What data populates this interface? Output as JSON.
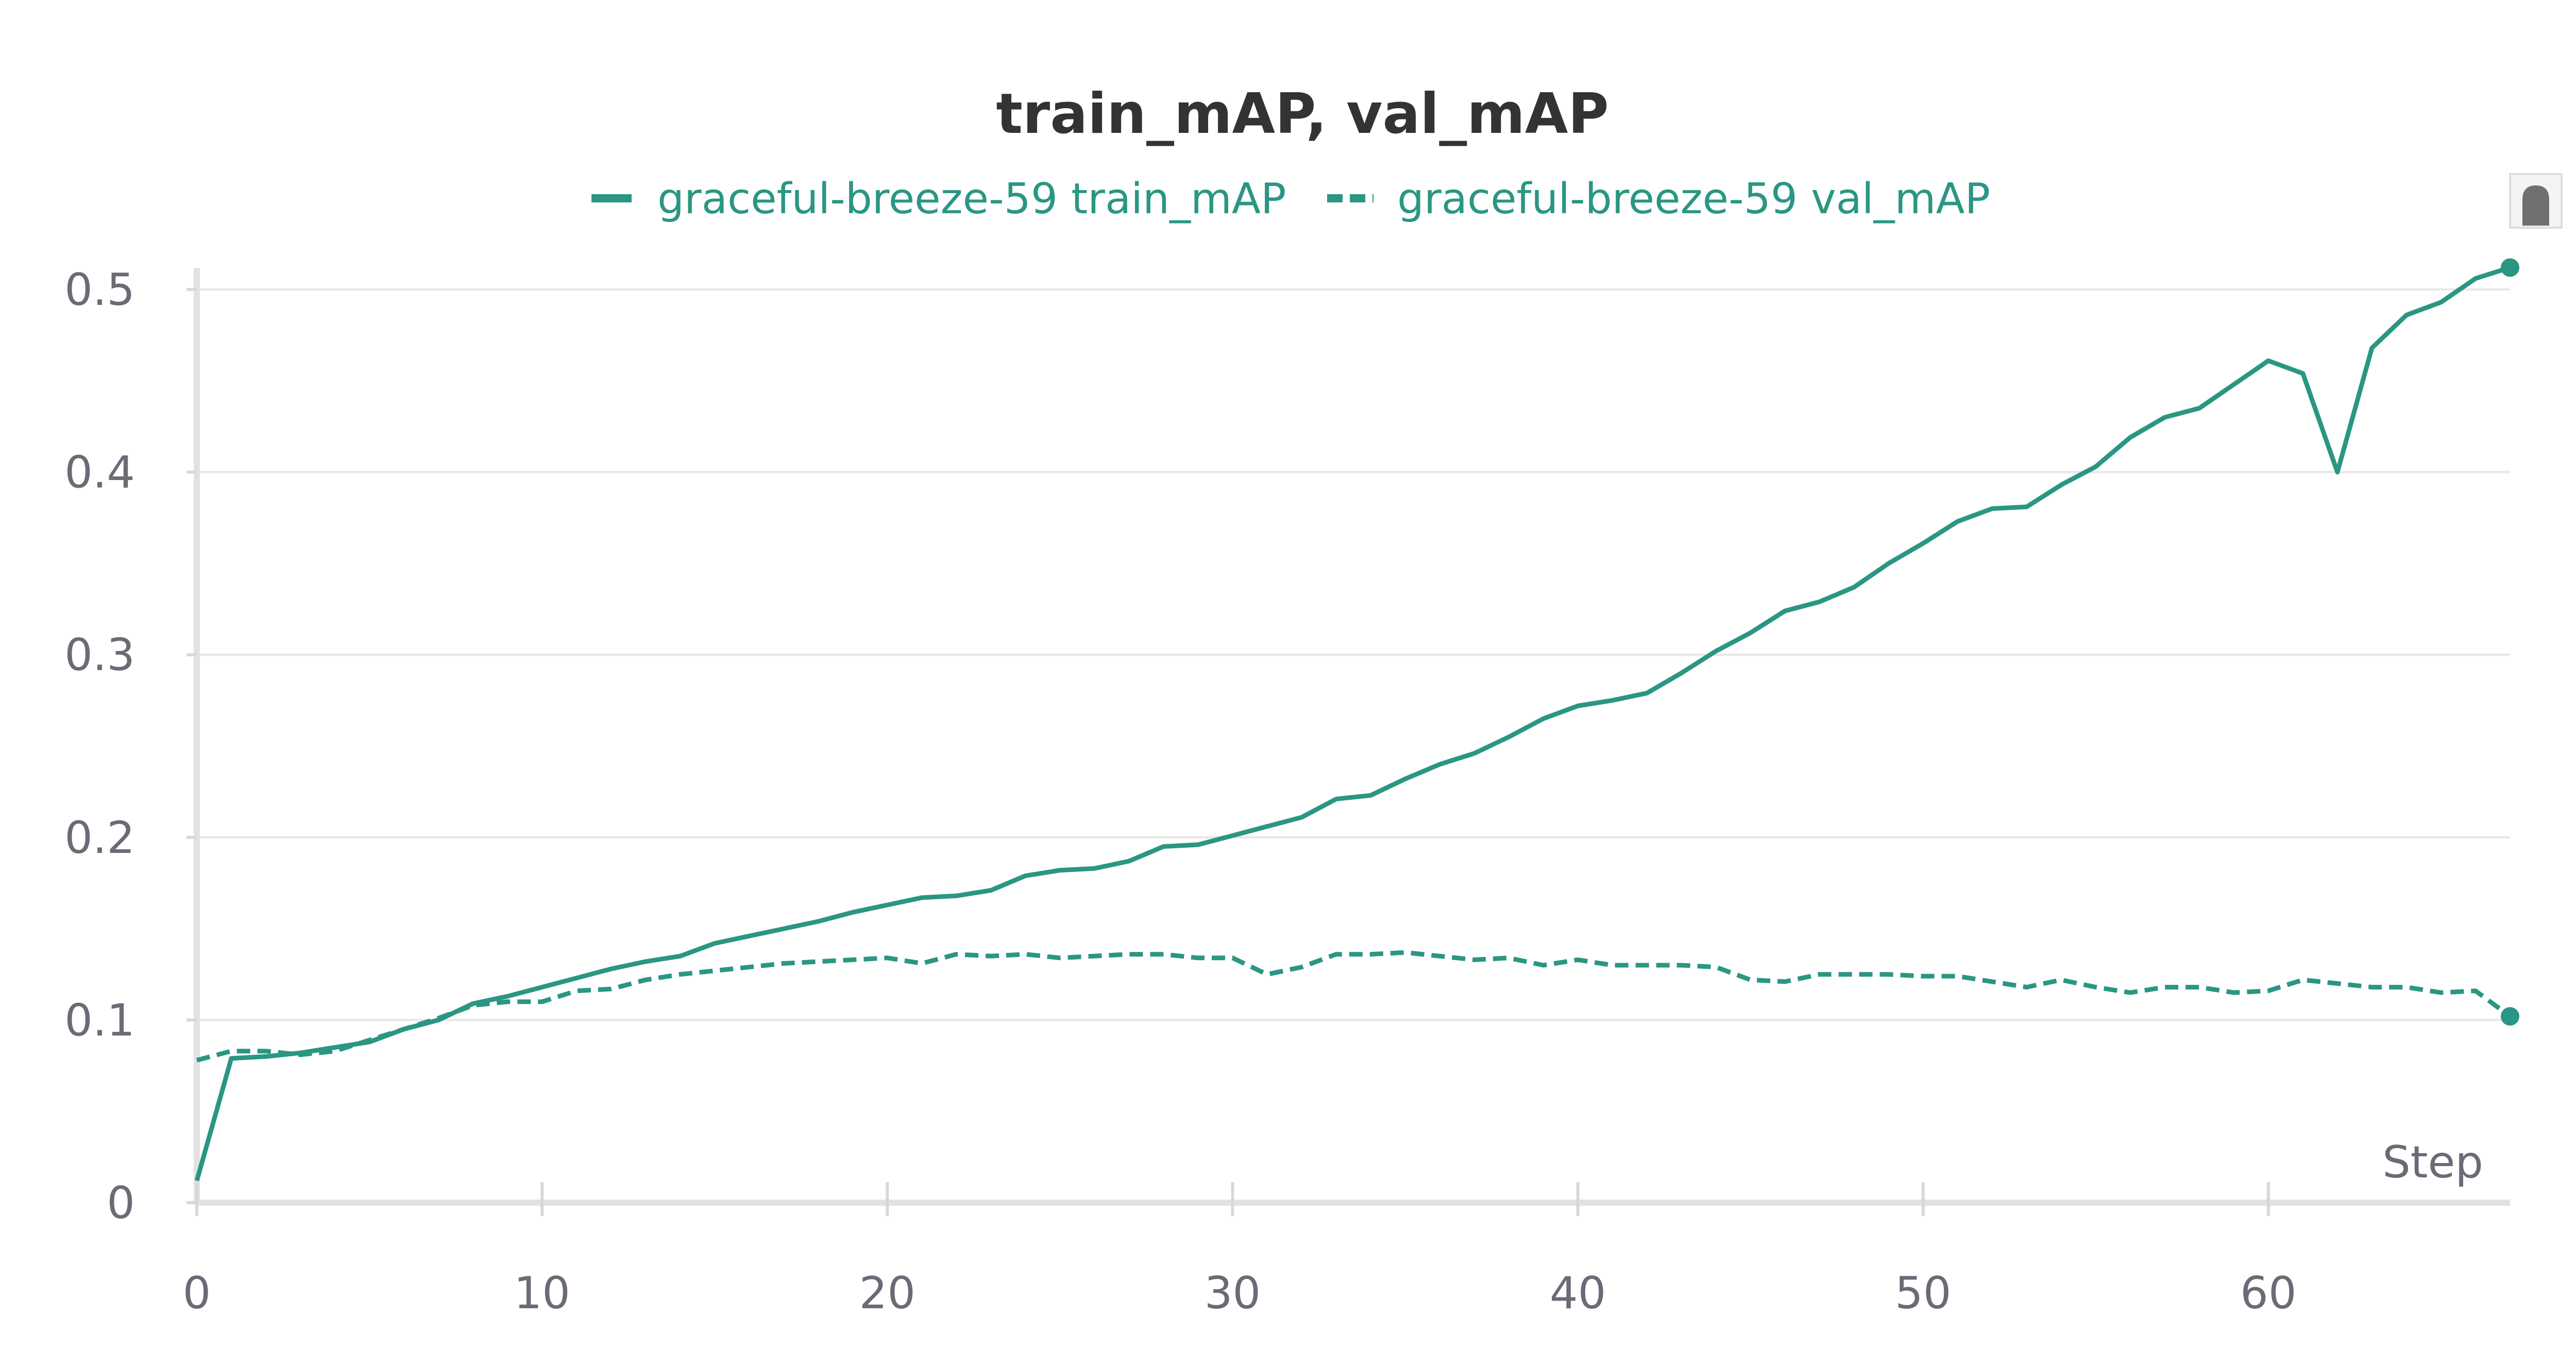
{
  "chart_data": {
    "type": "line",
    "title": "train_mAP, val_mAP",
    "xlabel": "Step",
    "ylabel": "",
    "xlim": [
      0,
      67
    ],
    "ylim": [
      0,
      0.5
    ],
    "x_ticks": [
      0,
      10,
      20,
      30,
      40,
      50,
      60
    ],
    "y_ticks": [
      0,
      0.1,
      0.2,
      0.3,
      0.4,
      0.5
    ],
    "x_tick_labels": [
      "0",
      "10",
      "20",
      "30",
      "40",
      "50",
      "60"
    ],
    "y_tick_labels": [
      "0",
      "0.1",
      "0.2",
      "0.3",
      "0.4",
      "0.5"
    ],
    "grid": true,
    "legend_position": "top",
    "series": [
      {
        "name": "graceful-breeze-59 train_mAP",
        "color": "#2a9683",
        "dash": "solid",
        "x": [
          0,
          1,
          2,
          3,
          4,
          5,
          6,
          7,
          8,
          9,
          10,
          11,
          12,
          13,
          14,
          15,
          16,
          17,
          18,
          19,
          20,
          21,
          22,
          23,
          24,
          25,
          26,
          27,
          28,
          29,
          30,
          31,
          32,
          33,
          34,
          35,
          36,
          37,
          38,
          39,
          40,
          41,
          42,
          43,
          44,
          45,
          46,
          47,
          48,
          49,
          50,
          51,
          52,
          53,
          54,
          55,
          56,
          57,
          58,
          59,
          60,
          61,
          62,
          63,
          64,
          65,
          66,
          67
        ],
        "values": [
          0.012,
          0.079,
          0.08,
          0.082,
          0.085,
          0.088,
          0.095,
          0.1,
          0.109,
          0.113,
          0.118,
          0.123,
          0.128,
          0.132,
          0.135,
          0.142,
          0.146,
          0.15,
          0.154,
          0.159,
          0.163,
          0.167,
          0.168,
          0.171,
          0.179,
          0.182,
          0.183,
          0.187,
          0.195,
          0.196,
          0.201,
          0.206,
          0.211,
          0.221,
          0.223,
          0.232,
          0.24,
          0.246,
          0.255,
          0.265,
          0.272,
          0.275,
          0.279,
          0.29,
          0.302,
          0.312,
          0.324,
          0.329,
          0.337,
          0.35,
          0.361,
          0.373,
          0.38,
          0.381,
          0.393,
          0.403,
          0.419,
          0.43,
          0.435,
          0.448,
          0.461,
          0.454,
          0.4,
          0.468,
          0.486,
          0.493,
          0.506,
          0.512
        ]
      },
      {
        "name": "graceful-breeze-59 val_mAP",
        "color": "#2a9683",
        "dash": "dashed",
        "x": [
          0,
          1,
          2,
          3,
          4,
          5,
          6,
          7,
          8,
          9,
          10,
          11,
          12,
          13,
          14,
          15,
          16,
          17,
          18,
          19,
          20,
          21,
          22,
          23,
          24,
          25,
          26,
          27,
          28,
          29,
          30,
          31,
          32,
          33,
          34,
          35,
          36,
          37,
          38,
          39,
          40,
          41,
          42,
          43,
          44,
          45,
          46,
          47,
          48,
          49,
          50,
          51,
          52,
          53,
          54,
          55,
          56,
          57,
          58,
          59,
          60,
          61,
          62,
          63,
          64,
          65,
          66,
          67
        ],
        "values": [
          0.078,
          0.083,
          0.083,
          0.081,
          0.083,
          0.089,
          0.095,
          0.101,
          0.108,
          0.11,
          0.11,
          0.116,
          0.117,
          0.122,
          0.125,
          0.127,
          0.129,
          0.131,
          0.132,
          0.133,
          0.134,
          0.131,
          0.136,
          0.135,
          0.136,
          0.134,
          0.135,
          0.136,
          0.136,
          0.134,
          0.134,
          0.125,
          0.129,
          0.136,
          0.136,
          0.137,
          0.135,
          0.133,
          0.134,
          0.13,
          0.133,
          0.13,
          0.13,
          0.13,
          0.129,
          0.122,
          0.121,
          0.125,
          0.125,
          0.125,
          0.124,
          0.124,
          0.121,
          0.118,
          0.122,
          0.118,
          0.115,
          0.118,
          0.118,
          0.115,
          0.116,
          0.122,
          0.12,
          0.118,
          0.118,
          0.115,
          0.116,
          0.102
        ]
      }
    ]
  }
}
